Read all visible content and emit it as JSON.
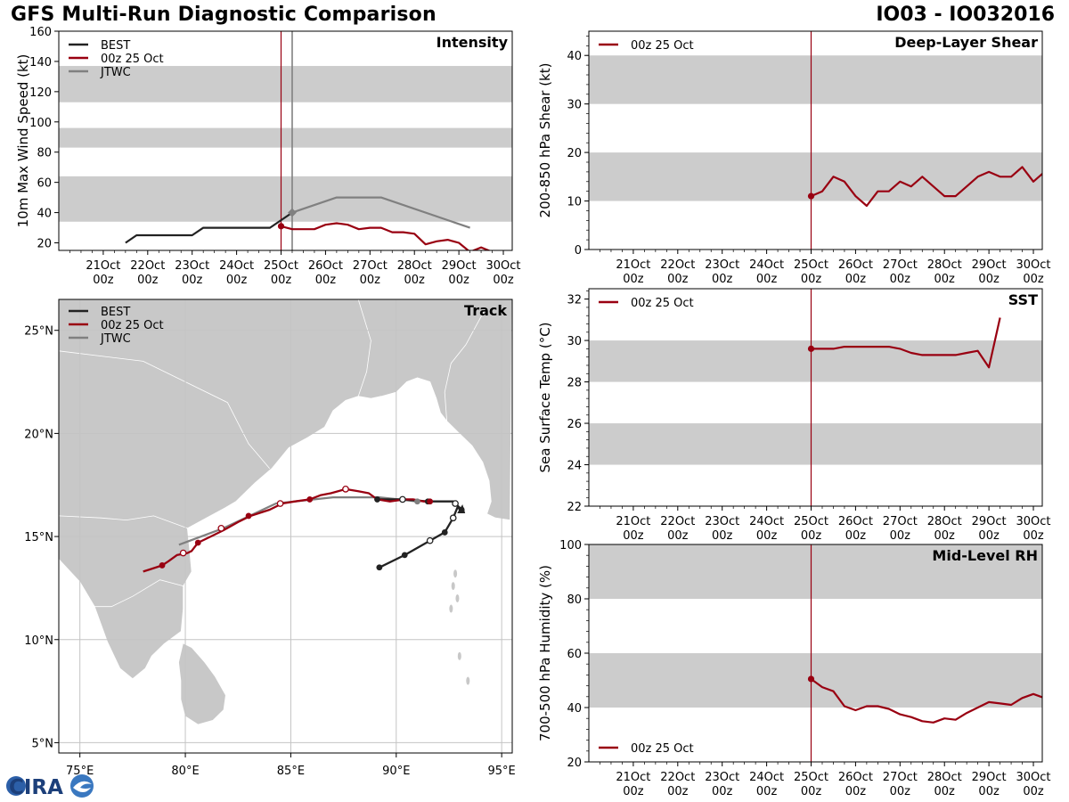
{
  "header": {
    "title": "GFS Multi-Run Diagnostic Comparison",
    "storm_id": "IO03 - IO032016"
  },
  "logo": {
    "text": "CIRA"
  },
  "colors": {
    "best": "#222222",
    "run": "#990011",
    "jtwc": "#808080",
    "band": "#cccccc",
    "land": "#c8c8c8"
  },
  "legend": {
    "best": "BEST",
    "run": "00z 25 Oct",
    "jtwc": "JTWC"
  },
  "time_axis": {
    "labels": [
      [
        "21Oct",
        "00z"
      ],
      [
        "22Oct",
        "00z"
      ],
      [
        "23Oct",
        "00z"
      ],
      [
        "24Oct",
        "00z"
      ],
      [
        "25Oct",
        "00z"
      ],
      [
        "26Oct",
        "00z"
      ],
      [
        "27Oct",
        "00z"
      ],
      [
        "28Oct",
        "00z"
      ],
      [
        "29Oct",
        "00z"
      ],
      [
        "30Oct",
        "00z"
      ]
    ],
    "first_day": 21,
    "start_day": 20.0,
    "end_day": 30.2,
    "init_day": 25.0,
    "jtwc_time": 25.25
  },
  "chart_data": [
    {
      "id": "intensity",
      "type": "line",
      "title": "Intensity",
      "ylabel": "10m Max Wind Speed (kt)",
      "ylim": [
        15,
        160
      ],
      "yticks": [
        20,
        40,
        60,
        80,
        100,
        120,
        140,
        160
      ],
      "bands": [
        [
          34,
          64
        ],
        [
          83,
          96
        ],
        [
          113,
          137
        ]
      ],
      "series": [
        {
          "name": "BEST",
          "color": "best",
          "points": [
            [
              21.5,
              20
            ],
            [
              21.75,
              25
            ],
            [
              22,
              25
            ],
            [
              22.5,
              25
            ],
            [
              23,
              25
            ],
            [
              23.25,
              30
            ],
            [
              23.5,
              30
            ],
            [
              24,
              30
            ],
            [
              24.5,
              30
            ],
            [
              24.75,
              30
            ],
            [
              25,
              35
            ],
            [
              25.25,
              40
            ]
          ]
        },
        {
          "name": "00z 25 Oct",
          "color": "run",
          "points": [
            [
              25,
              31
            ],
            [
              25.25,
              29
            ],
            [
              25.5,
              29
            ],
            [
              25.75,
              29
            ],
            [
              26,
              32
            ],
            [
              26.25,
              33
            ],
            [
              26.5,
              32
            ],
            [
              26.75,
              29
            ],
            [
              27,
              30
            ],
            [
              27.25,
              30
            ],
            [
              27.5,
              27
            ],
            [
              27.75,
              27
            ],
            [
              28,
              26
            ],
            [
              28.25,
              19
            ],
            [
              28.5,
              21
            ],
            [
              28.75,
              22
            ],
            [
              29,
              20
            ],
            [
              29.25,
              14
            ],
            [
              29.5,
              17
            ],
            [
              29.75,
              14
            ]
          ]
        },
        {
          "name": "JTWC",
          "color": "jtwc",
          "points": [
            [
              25.25,
              40
            ],
            [
              25.75,
              45
            ],
            [
              26.25,
              50
            ],
            [
              27.25,
              50
            ],
            [
              29.25,
              30
            ]
          ]
        }
      ]
    },
    {
      "id": "shear",
      "type": "line",
      "title": "Deep-Layer Shear",
      "ylabel": "200-850 hPa Shear (kt)",
      "ylim": [
        0,
        45
      ],
      "yticks": [
        0,
        10,
        20,
        30,
        40
      ],
      "bands": [
        [
          10,
          20
        ],
        [
          30,
          40
        ]
      ],
      "series": [
        {
          "name": "00z 25 Oct",
          "color": "run",
          "points": [
            [
              25,
              11
            ],
            [
              25.25,
              12
            ],
            [
              25.5,
              15
            ],
            [
              25.75,
              14
            ],
            [
              26,
              11
            ],
            [
              26.25,
              9
            ],
            [
              26.5,
              12
            ],
            [
              26.75,
              12
            ],
            [
              27,
              14
            ],
            [
              27.25,
              13
            ],
            [
              27.5,
              15
            ],
            [
              27.75,
              13
            ],
            [
              28,
              11
            ],
            [
              28.25,
              11
            ],
            [
              28.5,
              13
            ],
            [
              28.75,
              15
            ],
            [
              29,
              16
            ],
            [
              29.25,
              15
            ],
            [
              29.5,
              15
            ],
            [
              29.75,
              17
            ],
            [
              30,
              14
            ],
            [
              30.25,
              16
            ]
          ]
        }
      ]
    },
    {
      "id": "sst",
      "type": "line",
      "title": "SST",
      "ylabel": "Sea Surface Temp (°C)",
      "ylim": [
        22,
        32.5
      ],
      "yticks": [
        22,
        24,
        26,
        28,
        30,
        32
      ],
      "bands": [
        [
          24,
          26
        ],
        [
          28,
          30
        ]
      ],
      "series": [
        {
          "name": "00z 25 Oct",
          "color": "run",
          "points": [
            [
              25,
              29.6
            ],
            [
              25.25,
              29.6
            ],
            [
              25.5,
              29.6
            ],
            [
              25.75,
              29.7
            ],
            [
              26,
              29.7
            ],
            [
              26.25,
              29.7
            ],
            [
              26.5,
              29.7
            ],
            [
              26.75,
              29.7
            ],
            [
              27,
              29.6
            ],
            [
              27.25,
              29.4
            ],
            [
              27.5,
              29.3
            ],
            [
              27.75,
              29.3
            ],
            [
              28,
              29.3
            ],
            [
              28.25,
              29.3
            ],
            [
              28.5,
              29.4
            ],
            [
              28.75,
              29.5
            ],
            [
              29,
              28.7
            ],
            [
              29.25,
              31.1
            ]
          ]
        }
      ]
    },
    {
      "id": "rh",
      "type": "line",
      "title": "Mid-Level RH",
      "ylabel": "700-500 hPa Humidity (%)",
      "ylim": [
        20,
        100
      ],
      "yticks": [
        20,
        40,
        60,
        80,
        100
      ],
      "bands": [
        [
          40,
          60
        ],
        [
          80,
          100
        ]
      ],
      "series": [
        {
          "name": "00z 25 Oct",
          "color": "run",
          "points": [
            [
              25,
              50.5
            ],
            [
              25.25,
              47.5
            ],
            [
              25.5,
              46
            ],
            [
              25.75,
              40.5
            ],
            [
              26,
              39
            ],
            [
              26.25,
              40.5
            ],
            [
              26.5,
              40.5
            ],
            [
              26.75,
              39.5
            ],
            [
              27,
              37.5
            ],
            [
              27.25,
              36.5
            ],
            [
              27.5,
              35
            ],
            [
              27.75,
              34.5
            ],
            [
              28,
              36
            ],
            [
              28.25,
              35.5
            ],
            [
              28.5,
              38
            ],
            [
              28.75,
              40
            ],
            [
              29,
              42
            ],
            [
              29.25,
              41.5
            ],
            [
              29.5,
              41
            ],
            [
              29.75,
              43.5
            ],
            [
              30,
              45
            ],
            [
              30.25,
              43.5
            ]
          ]
        }
      ]
    },
    {
      "id": "track",
      "type": "scatter",
      "title": "Track",
      "xlim": [
        74,
        95.5
      ],
      "ylim": [
        4.5,
        26.5
      ],
      "xticks": [
        75,
        80,
        85,
        90,
        95
      ],
      "yticks": [
        5,
        10,
        15,
        20,
        25
      ],
      "xtick_labels": [
        "75°E",
        "80°E",
        "85°E",
        "90°E",
        "95°E"
      ],
      "ytick_labels": [
        "5°N",
        "10°N",
        "15°N",
        "20°N",
        "25°N"
      ],
      "series": [
        {
          "name": "BEST",
          "color": "best",
          "points": [
            [
              89.2,
              13.5
            ],
            [
              90.4,
              14.1
            ],
            [
              91.6,
              14.8
            ],
            [
              92.3,
              15.2
            ],
            [
              92.7,
              15.9
            ],
            [
              92.9,
              16.4
            ],
            [
              93.1,
              16.3
            ],
            [
              92.8,
              16.6
            ],
            [
              92.7,
              16.7
            ],
            [
              91.5,
              16.7
            ],
            [
              90.3,
              16.8
            ],
            [
              89.1,
              16.8
            ]
          ]
        },
        {
          "name": "00z 25 Oct",
          "color": "run",
          "points": [
            [
              91.6,
              16.7
            ],
            [
              91.3,
              16.7
            ],
            [
              90.8,
              16.8
            ],
            [
              90.4,
              16.8
            ],
            [
              89.7,
              16.7
            ],
            [
              89.1,
              16.8
            ],
            [
              88.7,
              17.1
            ],
            [
              88.2,
              17.2
            ],
            [
              87.6,
              17.3
            ],
            [
              86.9,
              17.1
            ],
            [
              86.4,
              17.0
            ],
            [
              85.9,
              16.8
            ],
            [
              85.2,
              16.7
            ],
            [
              84.6,
              16.6
            ],
            [
              84.0,
              16.3
            ],
            [
              83.1,
              16.0
            ],
            [
              82.5,
              15.7
            ],
            [
              81.8,
              15.3
            ],
            [
              81.2,
              15.0
            ],
            [
              80.6,
              14.7
            ],
            [
              80.3,
              14.3
            ],
            [
              80.1,
              14.2
            ],
            [
              79.6,
              14.1
            ],
            [
              79.2,
              13.8
            ],
            [
              78.9,
              13.6
            ],
            [
              78.3,
              13.4
            ],
            [
              78.0,
              13.3
            ]
          ]
        },
        {
          "name": "JTWC",
          "color": "jtwc",
          "points": [
            [
              91.0,
              16.7
            ],
            [
              89.2,
              16.9
            ],
            [
              87.0,
              16.9
            ],
            [
              84.3,
              16.6
            ],
            [
              81.8,
              15.4
            ],
            [
              79.7,
              14.6
            ]
          ]
        }
      ],
      "markers": [
        {
          "series": "BEST",
          "filled": [
            [
              89.2,
              13.5
            ],
            [
              90.4,
              14.1
            ],
            [
              92.3,
              15.2
            ],
            [
              93.1,
              16.3
            ],
            [
              91.5,
              16.7
            ],
            [
              89.1,
              16.8
            ]
          ],
          "open": [
            [
              91.6,
              14.8
            ],
            [
              92.7,
              15.9
            ],
            [
              92.8,
              16.6
            ],
            [
              90.3,
              16.8
            ]
          ]
        },
        {
          "series": "00z 25 Oct",
          "filled": [
            [
              91.6,
              16.7
            ],
            [
              85.9,
              16.8
            ],
            [
              83.0,
              16.0
            ],
            [
              80.6,
              14.7
            ],
            [
              78.9,
              13.6
            ]
          ],
          "open": [
            [
              87.6,
              17.3
            ],
            [
              84.5,
              16.6
            ],
            [
              81.7,
              15.4
            ],
            [
              79.9,
              14.2
            ]
          ]
        },
        {
          "series": "JTWC",
          "filled": [
            [
              91.0,
              16.7
            ]
          ],
          "open": []
        }
      ]
    }
  ]
}
